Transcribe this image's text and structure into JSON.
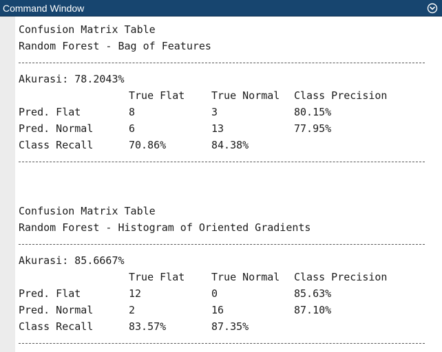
{
  "window": {
    "title": "Command Window",
    "menu_icon": "chevron-down-circle-icon",
    "colors": {
      "titlebar": "#17456f",
      "title_text": "#ffffff",
      "gutter": "#ececec",
      "text": "#1a1a1a"
    }
  },
  "sections": [
    {
      "heading": "Confusion Matrix Table",
      "subheading": "Random Forest - Bag of Features",
      "accuracy": "Akurasi: 78.2043%",
      "columns": [
        "",
        "True Flat",
        "True Normal",
        "Class Precision"
      ],
      "rows": [
        [
          "Pred. Flat",
          "8",
          "3",
          "80.15%"
        ],
        [
          "Pred. Normal",
          "6",
          "13",
          "77.95%"
        ],
        [
          "Class Recall",
          "70.86%",
          "84.38%",
          ""
        ]
      ]
    },
    {
      "heading": "Confusion Matrix Table",
      "subheading": "Random Forest - Histogram of Oriented Gradients",
      "accuracy": "Akurasi: 85.6667%",
      "columns": [
        "",
        "True Flat",
        "True Normal",
        "Class Precision"
      ],
      "rows": [
        [
          "Pred. Flat",
          "12",
          "0",
          "85.63%"
        ],
        [
          "Pred. Normal",
          "2",
          "16",
          "87.10%"
        ],
        [
          "Class Recall",
          "83.57%",
          "87.35%",
          ""
        ]
      ]
    }
  ]
}
